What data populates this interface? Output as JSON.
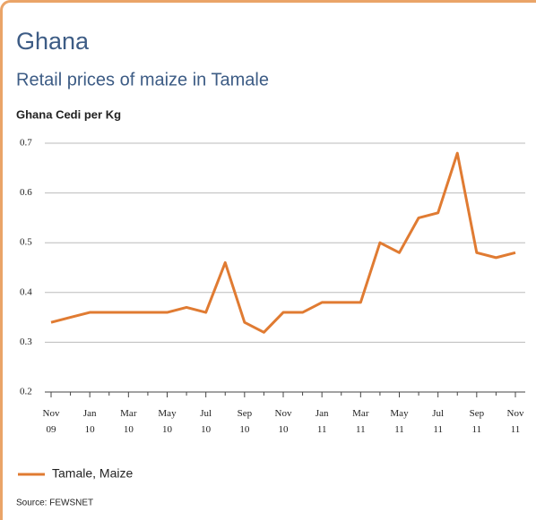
{
  "chart_data": {
    "type": "line",
    "title": "Ghana",
    "subtitle": "Retail prices of maize in Tamale",
    "y_label": "Ghana Cedi per Kg",
    "source": "Source: FEWSNET",
    "categories": [
      "Nov 09",
      null,
      "Jan 10",
      null,
      "Mar 10",
      null,
      "May 10",
      null,
      "Jul 10",
      null,
      "Sep 10",
      null,
      "Nov 10",
      null,
      "Jan 11",
      null,
      "Mar 11",
      null,
      "May 11",
      null,
      "Jul 11",
      null,
      "Sep 11",
      null,
      "Nov 11"
    ],
    "series": [
      {
        "name": "Tamale, Maize",
        "color": "#e07b32",
        "values": [
          0.34,
          0.35,
          0.36,
          0.36,
          0.36,
          0.36,
          0.36,
          0.37,
          0.36,
          0.46,
          0.34,
          0.32,
          0.36,
          0.36,
          0.38,
          0.38,
          0.38,
          0.5,
          0.48,
          0.55,
          0.56,
          0.68,
          0.48,
          0.47,
          0.48
        ]
      }
    ],
    "ylim": [
      0.2,
      0.7
    ],
    "yticks": [
      0.2,
      0.3,
      0.4,
      0.5,
      0.6,
      0.7
    ],
    "grid": true,
    "legend": "bottom-left"
  }
}
